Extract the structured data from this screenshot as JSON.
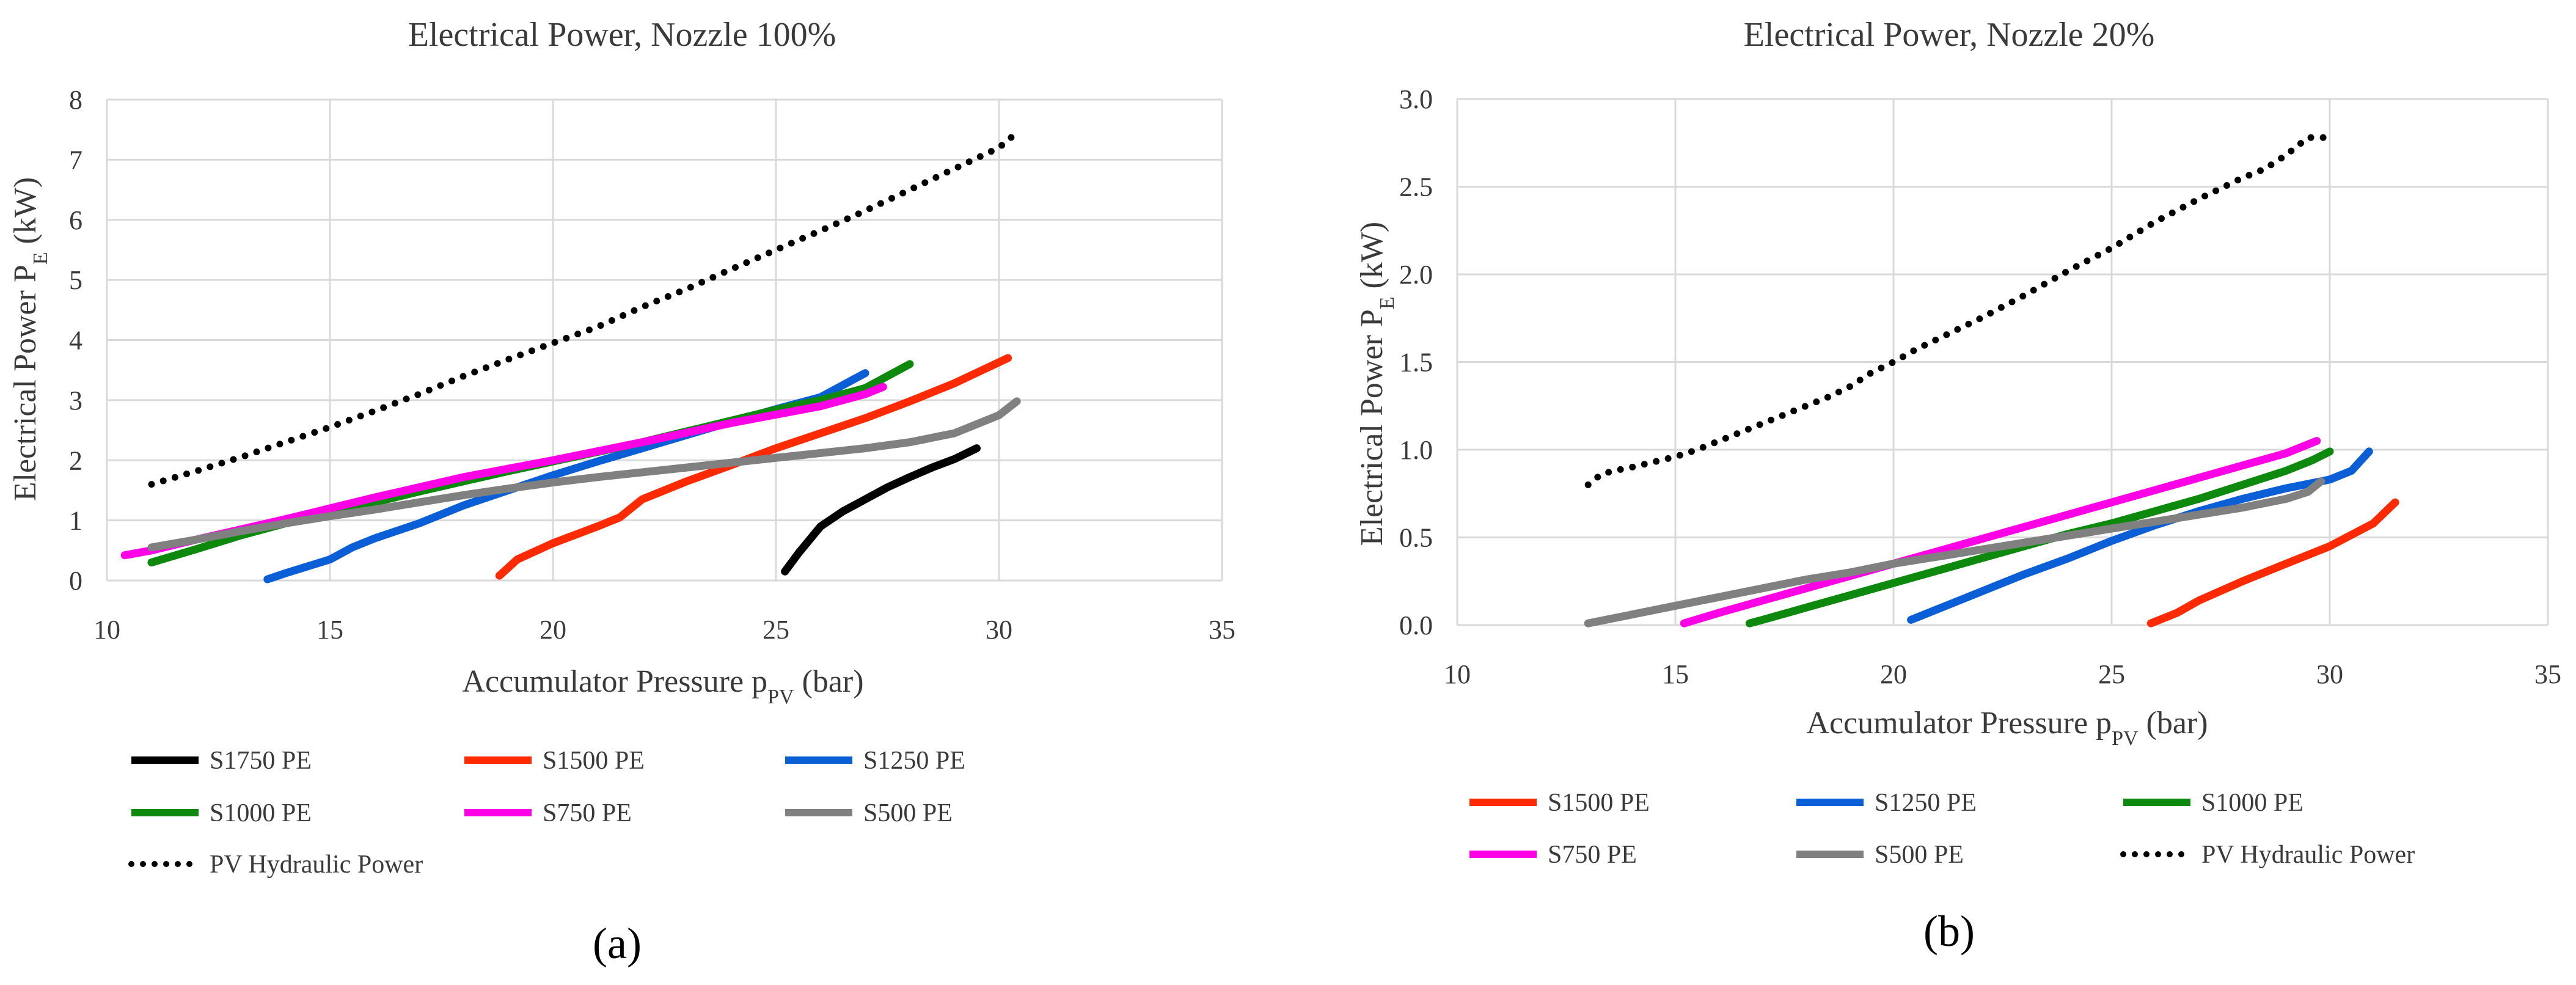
{
  "chart_data": [
    {
      "type": "line",
      "title": "Electrical Power, Nozzle 100%",
      "xlabel": {
        "main": "Accumulator Pressure p",
        "sub": "PV",
        "unit": " (bar)"
      },
      "ylabel": {
        "main": "Electrical Power P",
        "sub": "E",
        "unit": " (kW)"
      },
      "xlim": [
        10,
        35
      ],
      "ylim": [
        0,
        8
      ],
      "xticks": [
        "10",
        "15",
        "20",
        "25",
        "30",
        "35"
      ],
      "yticks": [
        "0",
        "1",
        "2",
        "3",
        "4",
        "5",
        "6",
        "7",
        "8"
      ],
      "panel_label": "(a)",
      "series": [
        {
          "name": "S1750 PE",
          "color": "#000000",
          "style": "solid",
          "points": [
            [
              25.2,
              0.15
            ],
            [
              25.5,
              0.45
            ],
            [
              26.0,
              0.9
            ],
            [
              26.5,
              1.15
            ],
            [
              27.0,
              1.35
            ],
            [
              27.5,
              1.55
            ],
            [
              28.0,
              1.72
            ],
            [
              28.5,
              1.88
            ],
            [
              29.0,
              2.02
            ],
            [
              29.5,
              2.2
            ]
          ]
        },
        {
          "name": "S1500 PE",
          "color": "#ff2a00",
          "style": "solid",
          "points": [
            [
              18.8,
              0.08
            ],
            [
              19.2,
              0.35
            ],
            [
              20.0,
              0.62
            ],
            [
              21.0,
              0.9
            ],
            [
              21.5,
              1.05
            ],
            [
              22.0,
              1.35
            ],
            [
              23.0,
              1.65
            ],
            [
              24.0,
              1.92
            ],
            [
              25.0,
              2.2
            ],
            [
              26.0,
              2.45
            ],
            [
              27.0,
              2.7
            ],
            [
              28.0,
              2.98
            ],
            [
              29.0,
              3.28
            ],
            [
              30.2,
              3.7
            ]
          ]
        },
        {
          "name": "S1250 PE",
          "color": "#0a5fd6",
          "style": "solid",
          "points": [
            [
              13.6,
              0.02
            ],
            [
              14.0,
              0.12
            ],
            [
              15.0,
              0.35
            ],
            [
              15.5,
              0.55
            ],
            [
              16.0,
              0.7
            ],
            [
              17.0,
              0.95
            ],
            [
              18.0,
              1.25
            ],
            [
              19.0,
              1.5
            ],
            [
              20.0,
              1.75
            ],
            [
              21.0,
              1.98
            ],
            [
              22.0,
              2.2
            ],
            [
              23.0,
              2.42
            ],
            [
              24.0,
              2.64
            ],
            [
              25.0,
              2.85
            ],
            [
              26.0,
              3.05
            ],
            [
              27.0,
              3.45
            ]
          ]
        },
        {
          "name": "S1000 PE",
          "color": "#0d8a0d",
          "style": "solid",
          "points": [
            [
              11.0,
              0.3
            ],
            [
              12.0,
              0.52
            ],
            [
              13.0,
              0.75
            ],
            [
              14.0,
              0.95
            ],
            [
              15.0,
              1.12
            ],
            [
              16.0,
              1.3
            ],
            [
              17.0,
              1.48
            ],
            [
              18.0,
              1.65
            ],
            [
              19.0,
              1.82
            ],
            [
              20.0,
              1.98
            ],
            [
              21.0,
              2.14
            ],
            [
              22.0,
              2.3
            ],
            [
              23.0,
              2.48
            ],
            [
              24.0,
              2.66
            ],
            [
              25.0,
              2.84
            ],
            [
              26.0,
              3.0
            ],
            [
              27.0,
              3.2
            ],
            [
              28.0,
              3.6
            ]
          ]
        },
        {
          "name": "S750 PE",
          "color": "#ff00e6",
          "style": "solid",
          "points": [
            [
              10.4,
              0.42
            ],
            [
              11.0,
              0.5
            ],
            [
              12.0,
              0.68
            ],
            [
              13.0,
              0.85
            ],
            [
              14.0,
              1.02
            ],
            [
              15.0,
              1.2
            ],
            [
              16.0,
              1.38
            ],
            [
              17.0,
              1.55
            ],
            [
              18.0,
              1.72
            ],
            [
              19.0,
              1.86
            ],
            [
              20.0,
              2.0
            ],
            [
              21.0,
              2.15
            ],
            [
              22.0,
              2.3
            ],
            [
              23.0,
              2.46
            ],
            [
              24.0,
              2.62
            ],
            [
              25.0,
              2.76
            ],
            [
              26.0,
              2.9
            ],
            [
              27.0,
              3.1
            ],
            [
              27.4,
              3.22
            ]
          ]
        },
        {
          "name": "S500 PE",
          "color": "#808080",
          "style": "solid",
          "points": [
            [
              11.0,
              0.55
            ],
            [
              12.0,
              0.68
            ],
            [
              13.0,
              0.82
            ],
            [
              14.0,
              0.95
            ],
            [
              15.0,
              1.07
            ],
            [
              16.0,
              1.18
            ],
            [
              17.0,
              1.3
            ],
            [
              18.0,
              1.42
            ],
            [
              19.0,
              1.53
            ],
            [
              20.0,
              1.63
            ],
            [
              21.0,
              1.72
            ],
            [
              22.0,
              1.8
            ],
            [
              23.0,
              1.88
            ],
            [
              24.0,
              1.96
            ],
            [
              25.0,
              2.04
            ],
            [
              26.0,
              2.12
            ],
            [
              27.0,
              2.2
            ],
            [
              28.0,
              2.3
            ],
            [
              29.0,
              2.45
            ],
            [
              30.0,
              2.75
            ],
            [
              30.4,
              2.98
            ]
          ]
        },
        {
          "name": "PV Hydraulic Power",
          "color": "#000000",
          "style": "dotted",
          "points": [
            [
              11.0,
              1.6
            ],
            [
              12.0,
              1.82
            ],
            [
              13.0,
              2.05
            ],
            [
              14.0,
              2.3
            ],
            [
              15.0,
              2.55
            ],
            [
              16.0,
              2.82
            ],
            [
              17.0,
              3.1
            ],
            [
              18.0,
              3.4
            ],
            [
              19.0,
              3.68
            ],
            [
              20.0,
              3.95
            ],
            [
              21.0,
              4.22
            ],
            [
              22.0,
              4.55
            ],
            [
              23.0,
              4.85
            ],
            [
              24.0,
              5.18
            ],
            [
              25.0,
              5.5
            ],
            [
              26.0,
              5.82
            ],
            [
              27.0,
              6.15
            ],
            [
              28.0,
              6.5
            ],
            [
              29.0,
              6.85
            ],
            [
              30.0,
              7.2
            ],
            [
              30.4,
              7.45
            ]
          ]
        }
      ]
    },
    {
      "type": "line",
      "title": "Electrical Power, Nozzle 20%",
      "xlabel": {
        "main": "Accumulator Pressure p",
        "sub": "PV",
        "unit": " (bar)"
      },
      "ylabel": {
        "main": "Electrical Power P",
        "sub": "E",
        "unit": " (kW)"
      },
      "xlim": [
        10,
        35
      ],
      "ylim": [
        0,
        3
      ],
      "xticks": [
        "10",
        "15",
        "20",
        "25",
        "30",
        "35"
      ],
      "yticks": [
        "0.0",
        "0.5",
        "1.0",
        "1.5",
        "2.0",
        "2.5",
        "3.0"
      ],
      "panel_label": "(b)",
      "series": [
        {
          "name": "S1500 PE",
          "color": "#ff2a00",
          "style": "solid",
          "points": [
            [
              25.9,
              0.01
            ],
            [
              26.5,
              0.07
            ],
            [
              27.0,
              0.14
            ],
            [
              28.0,
              0.25
            ],
            [
              29.0,
              0.35
            ],
            [
              30.0,
              0.45
            ],
            [
              31.0,
              0.58
            ],
            [
              31.5,
              0.7
            ]
          ]
        },
        {
          "name": "S1250 PE",
          "color": "#0a5fd6",
          "style": "solid",
          "points": [
            [
              20.4,
              0.03
            ],
            [
              21.0,
              0.09
            ],
            [
              22.0,
              0.19
            ],
            [
              23.0,
              0.29
            ],
            [
              24.0,
              0.38
            ],
            [
              25.0,
              0.48
            ],
            [
              26.0,
              0.57
            ],
            [
              27.0,
              0.65
            ],
            [
              28.0,
              0.72
            ],
            [
              29.0,
              0.78
            ],
            [
              30.0,
              0.83
            ],
            [
              30.5,
              0.88
            ],
            [
              30.9,
              0.99
            ]
          ]
        },
        {
          "name": "S1000 PE",
          "color": "#0d8a0d",
          "style": "solid",
          "points": [
            [
              16.7,
              0.01
            ],
            [
              17.0,
              0.03
            ],
            [
              18.0,
              0.1
            ],
            [
              19.0,
              0.17
            ],
            [
              20.0,
              0.24
            ],
            [
              21.0,
              0.31
            ],
            [
              22.0,
              0.38
            ],
            [
              23.0,
              0.45
            ],
            [
              24.0,
              0.52
            ],
            [
              25.0,
              0.58
            ],
            [
              26.0,
              0.65
            ],
            [
              27.0,
              0.72
            ],
            [
              28.0,
              0.8
            ],
            [
              29.0,
              0.88
            ],
            [
              29.6,
              0.94
            ],
            [
              30.0,
              0.99
            ]
          ]
        },
        {
          "name": "S750 PE",
          "color": "#ff00e6",
          "style": "solid",
          "points": [
            [
              15.2,
              0.01
            ],
            [
              16.0,
              0.07
            ],
            [
              17.0,
              0.14
            ],
            [
              18.0,
              0.21
            ],
            [
              19.0,
              0.28
            ],
            [
              20.0,
              0.35
            ],
            [
              21.0,
              0.42
            ],
            [
              22.0,
              0.49
            ],
            [
              23.0,
              0.56
            ],
            [
              24.0,
              0.63
            ],
            [
              25.0,
              0.7
            ],
            [
              26.0,
              0.77
            ],
            [
              27.0,
              0.84
            ],
            [
              28.0,
              0.91
            ],
            [
              29.0,
              0.98
            ],
            [
              29.7,
              1.05
            ]
          ]
        },
        {
          "name": "S500 PE",
          "color": "#808080",
          "style": "solid",
          "points": [
            [
              13.0,
              0.01
            ],
            [
              14.0,
              0.06
            ],
            [
              15.0,
              0.11
            ],
            [
              16.0,
              0.16
            ],
            [
              17.0,
              0.21
            ],
            [
              18.0,
              0.26
            ],
            [
              19.0,
              0.3
            ],
            [
              20.0,
              0.35
            ],
            [
              21.0,
              0.39
            ],
            [
              22.0,
              0.43
            ],
            [
              23.0,
              0.47
            ],
            [
              24.0,
              0.51
            ],
            [
              25.0,
              0.55
            ],
            [
              26.0,
              0.59
            ],
            [
              27.0,
              0.63
            ],
            [
              28.0,
              0.67
            ],
            [
              29.0,
              0.72
            ],
            [
              29.5,
              0.76
            ],
            [
              29.8,
              0.82
            ]
          ]
        },
        {
          "name": "PV Hydraulic Power",
          "color": "#000000",
          "style": "dotted",
          "points": [
            [
              13.0,
              0.8
            ],
            [
              13.3,
              0.86
            ],
            [
              13.6,
              0.88
            ],
            [
              14.0,
              0.9
            ],
            [
              14.5,
              0.93
            ],
            [
              15.0,
              0.96
            ],
            [
              15.5,
              1.0
            ],
            [
              16.0,
              1.05
            ],
            [
              16.5,
              1.1
            ],
            [
              17.0,
              1.15
            ],
            [
              17.5,
              1.2
            ],
            [
              18.0,
              1.25
            ],
            [
              18.5,
              1.3
            ],
            [
              19.0,
              1.36
            ],
            [
              19.5,
              1.44
            ],
            [
              20.0,
              1.5
            ],
            [
              20.5,
              1.57
            ],
            [
              21.0,
              1.63
            ],
            [
              22.0,
              1.75
            ],
            [
              23.0,
              1.88
            ],
            [
              24.0,
              2.02
            ],
            [
              25.0,
              2.15
            ],
            [
              26.0,
              2.3
            ],
            [
              27.0,
              2.43
            ],
            [
              28.0,
              2.55
            ],
            [
              28.5,
              2.6
            ],
            [
              29.0,
              2.68
            ],
            [
              29.5,
              2.78
            ],
            [
              29.9,
              2.78
            ]
          ]
        }
      ]
    }
  ]
}
